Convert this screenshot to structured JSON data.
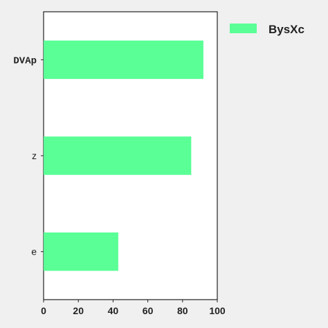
{
  "chart_data": {
    "type": "bar",
    "orientation": "horizontal",
    "categories": [
      "DVAp",
      "z",
      "e"
    ],
    "series": [
      {
        "name": "BysXc",
        "values": [
          92,
          85,
          43
        ],
        "color": "#5aff96"
      }
    ],
    "title": "",
    "xlabel": "",
    "ylabel": "",
    "xlim": [
      0,
      100
    ],
    "x_ticks": [
      "0",
      "20",
      "40",
      "60",
      "80",
      "100"
    ],
    "grid": false,
    "legend_position": "top-right"
  },
  "colors": {
    "background": "#f0f0f0",
    "plot_background": "#ffffff",
    "axis": "#222222",
    "bar": "#5aff96"
  }
}
